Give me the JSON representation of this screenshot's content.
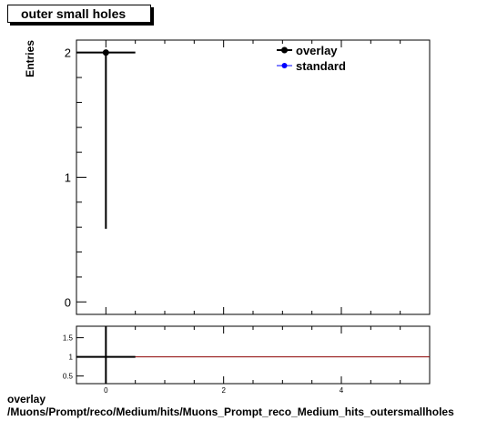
{
  "title": "outer small holes",
  "caption": {
    "line1": "overlay",
    "line2": "/Muons/Prompt/reco/Medium/hits/Muons_Prompt_reco_Medium_hits_outersmallholes"
  },
  "colors": {
    "overlay": "#000000",
    "standard": "#0000ff",
    "ratio_line": "#8b0000"
  },
  "chart_data": [
    {
      "type": "scatter",
      "ylabel": "Entries",
      "xlabel": "",
      "xlim": [
        -0.5,
        5.5
      ],
      "ylim": [
        -0.1,
        2.1
      ],
      "x_ticks": [
        0,
        2,
        4
      ],
      "y_ticks": [
        0,
        1,
        2
      ],
      "legend": {
        "placement": "top-right"
      },
      "series": [
        {
          "name": "overlay",
          "points": [
            {
              "x": 0,
              "y": 2,
              "xerr": 0.5,
              "yerr_low": 1.414,
              "yerr_high": 0
            }
          ]
        },
        {
          "name": "standard",
          "points": []
        }
      ]
    },
    {
      "type": "line",
      "xlim": [
        -0.5,
        5.5
      ],
      "ylim": [
        0.3,
        1.8
      ],
      "x_ticks": [
        0,
        2,
        4
      ],
      "y_ticks": [
        0.5,
        1,
        1.5
      ],
      "reference_line": 1,
      "series": [
        {
          "points": [
            {
              "x": 0,
              "y": 1,
              "xerr": 0.5
            }
          ]
        }
      ]
    }
  ]
}
